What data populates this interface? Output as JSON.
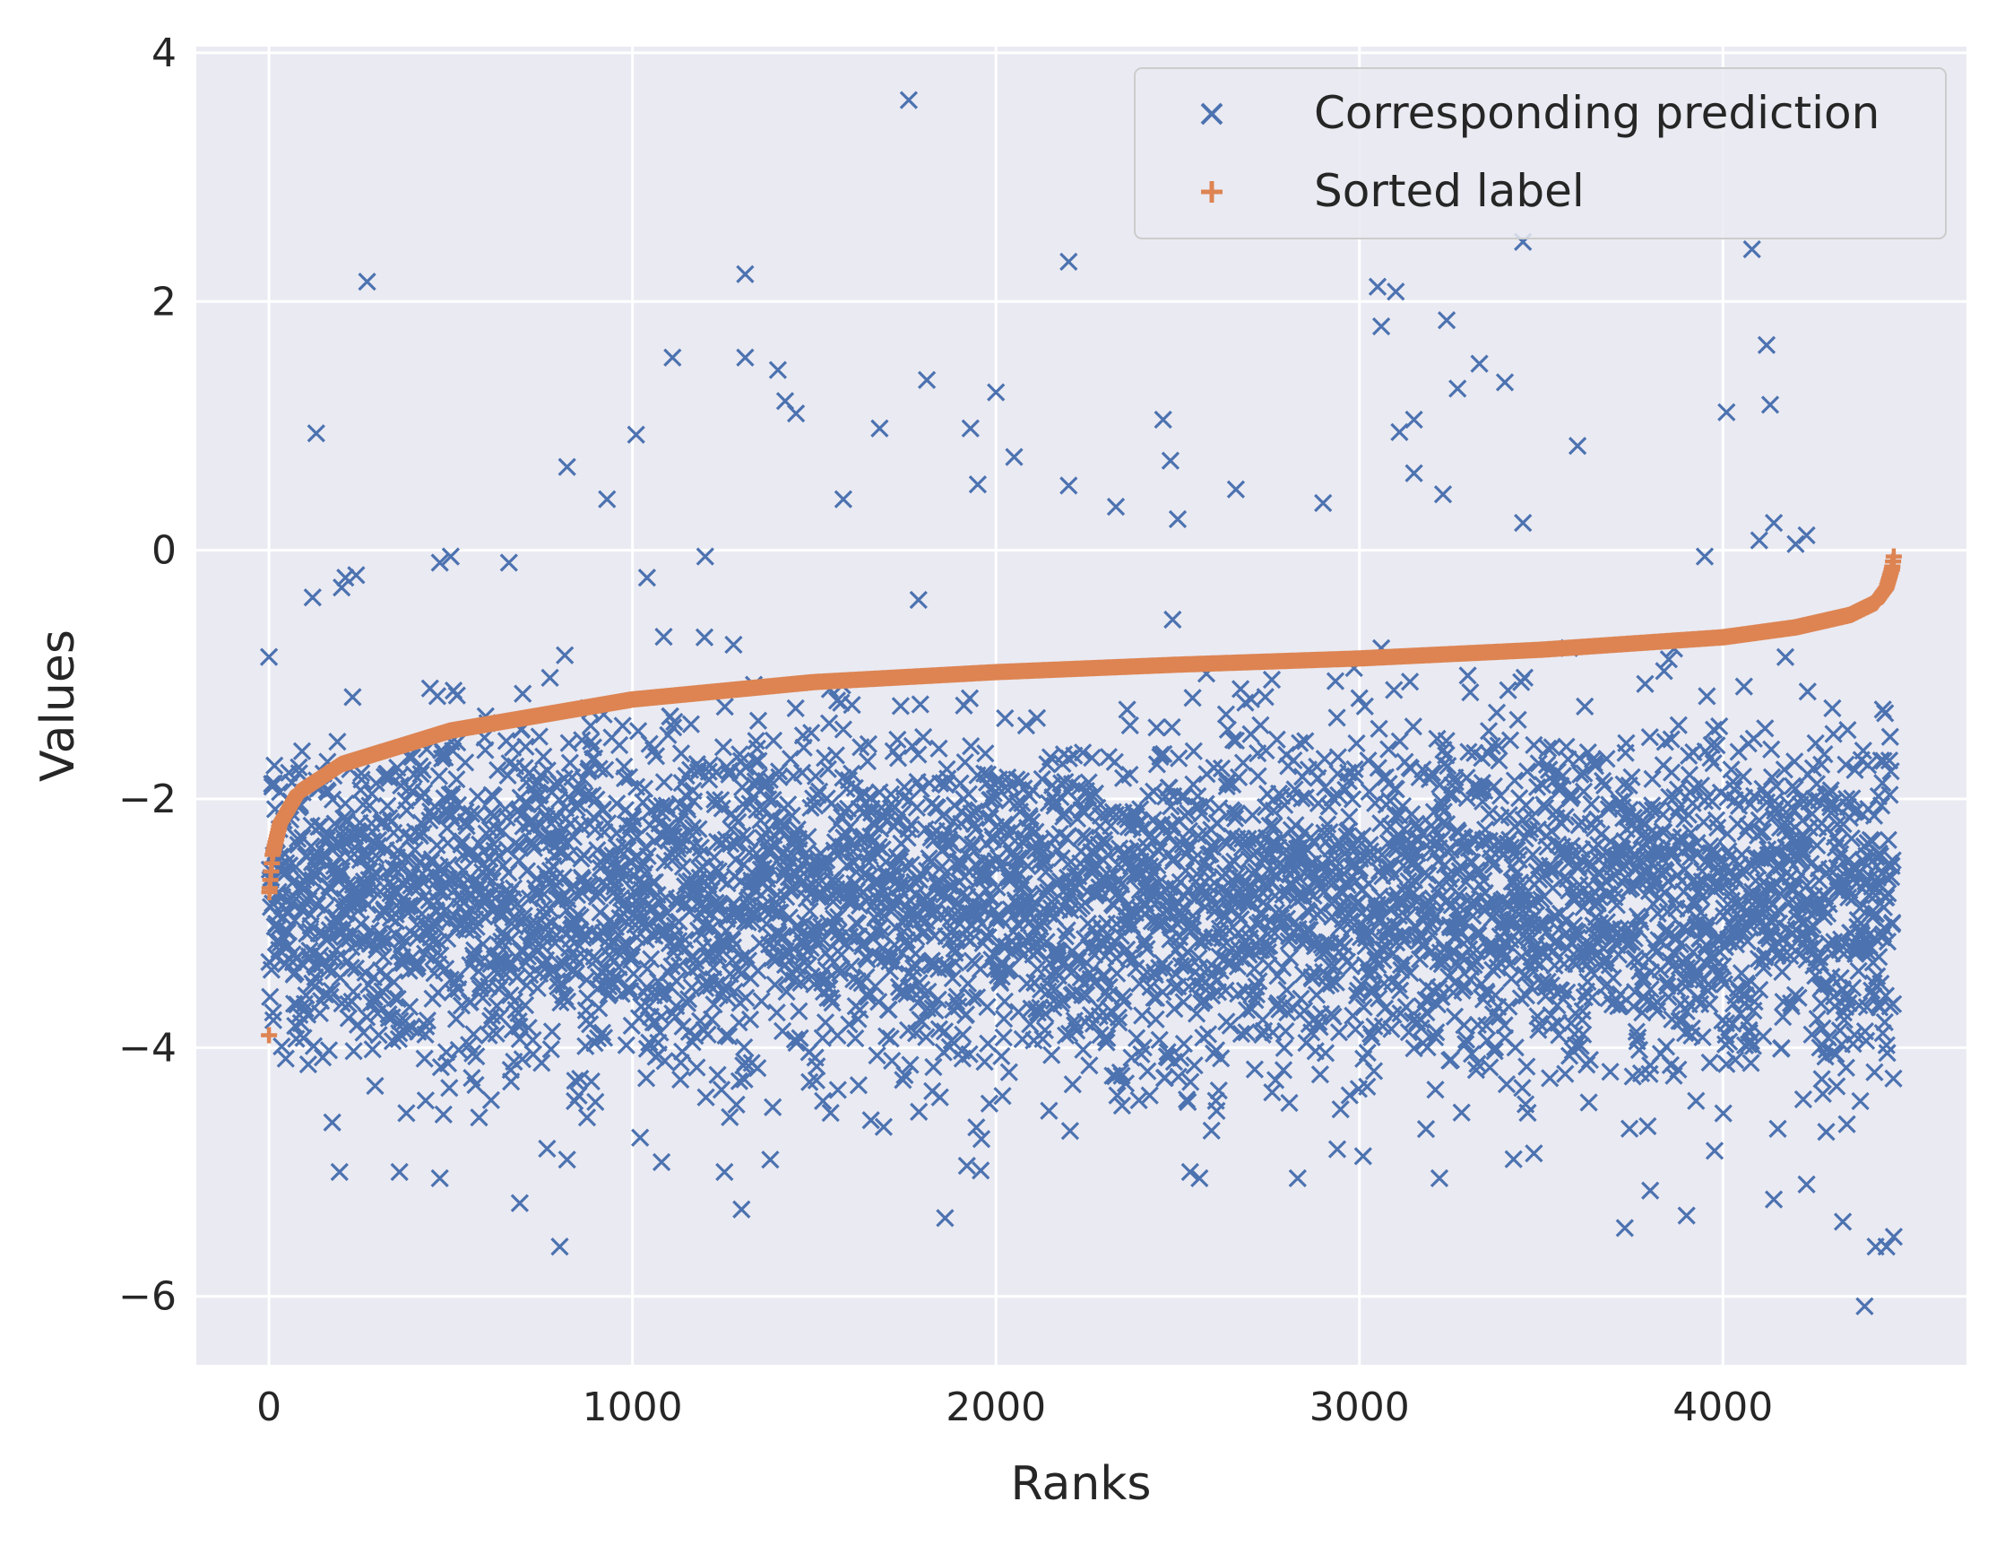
{
  "chart_data": {
    "type": "scatter",
    "xlabel": "Ranks",
    "ylabel": "Values",
    "xlim": [
      -200,
      4670
    ],
    "ylim": [
      -6.55,
      4.05
    ],
    "xticks": [
      0,
      1000,
      2000,
      3000,
      4000
    ],
    "xtick_labels": [
      "0",
      "1000",
      "2000",
      "3000",
      "4000"
    ],
    "yticks": [
      -6,
      -4,
      -2,
      0,
      2,
      4
    ],
    "ytick_labels": [
      "−6",
      "−4",
      "−2",
      "0",
      "2",
      "4"
    ],
    "grid": true,
    "legend_position": "top-right",
    "n_points": 4470,
    "series": [
      {
        "name": "Corresponding prediction",
        "marker": "x",
        "color": "#4c72b0",
        "bulk_distribution": {
          "mean": -2.8,
          "std": 0.7
        },
        "outliers": [
          [
            1760,
            3.62
          ],
          [
            270,
            2.16
          ],
          [
            1310,
            2.22
          ],
          [
            2200,
            2.32
          ],
          [
            3450,
            2.48
          ],
          [
            4080,
            2.42
          ],
          [
            3050,
            2.12
          ],
          [
            3100,
            2.08
          ],
          [
            3060,
            1.8
          ],
          [
            3240,
            1.85
          ],
          [
            4120,
            1.65
          ],
          [
            4130,
            1.17
          ],
          [
            4010,
            1.11
          ],
          [
            1110,
            1.55
          ],
          [
            1310,
            1.55
          ],
          [
            1400,
            1.45
          ],
          [
            1420,
            1.2
          ],
          [
            1450,
            1.1
          ],
          [
            1810,
            1.37
          ],
          [
            2000,
            1.27
          ],
          [
            3330,
            1.5
          ],
          [
            3400,
            1.35
          ],
          [
            3270,
            1.3
          ],
          [
            3150,
            1.05
          ],
          [
            3110,
            0.95
          ],
          [
            3600,
            0.84
          ],
          [
            130,
            0.94
          ],
          [
            1010,
            0.93
          ],
          [
            1680,
            0.98
          ],
          [
            1930,
            0.98
          ],
          [
            2460,
            1.05
          ],
          [
            820,
            0.67
          ],
          [
            930,
            0.41
          ],
          [
            2050,
            0.75
          ],
          [
            2200,
            0.52
          ],
          [
            2660,
            0.49
          ],
          [
            1950,
            0.53
          ],
          [
            2480,
            0.72
          ],
          [
            3150,
            0.62
          ],
          [
            3230,
            0.45
          ],
          [
            2330,
            0.35
          ],
          [
            1580,
            0.41
          ],
          [
            3450,
            0.22
          ],
          [
            4140,
            0.22
          ],
          [
            2900,
            0.38
          ],
          [
            2500,
            0.25
          ],
          [
            120,
            -0.38
          ],
          [
            200,
            -0.3
          ],
          [
            210,
            -0.22
          ],
          [
            240,
            -0.2
          ],
          [
            470,
            -0.1
          ],
          [
            500,
            -0.05
          ],
          [
            660,
            -0.1
          ],
          [
            1200,
            -0.05
          ],
          [
            1040,
            -0.22
          ],
          [
            3950,
            -0.05
          ],
          [
            4100,
            0.08
          ],
          [
            820,
            -4.9
          ],
          [
            1300,
            -5.3
          ],
          [
            1860,
            -5.37
          ],
          [
            2560,
            -5.05
          ],
          [
            3220,
            -5.05
          ],
          [
            3730,
            -5.45
          ],
          [
            3900,
            -5.35
          ],
          [
            4140,
            -5.22
          ],
          [
            4230,
            -5.1
          ],
          [
            4330,
            -5.4
          ],
          [
            4390,
            -6.08
          ],
          [
            4420,
            -5.6
          ],
          [
            4450,
            -5.6
          ],
          [
            4470,
            -5.52
          ],
          [
            800,
            -5.6
          ],
          [
            1920,
            -4.95
          ],
          [
            690,
            -5.25
          ],
          [
            470,
            -5.05
          ],
          [
            1080,
            -4.92
          ],
          [
            3480,
            -4.85
          ],
          [
            2830,
            -5.05
          ],
          [
            3800,
            -5.15
          ],
          [
            4400,
            -2.08
          ],
          [
            4440,
            -1.28
          ],
          [
            4460,
            -1.5
          ],
          [
            4230,
            0.12
          ],
          [
            4200,
            0.05
          ]
        ]
      },
      {
        "name": "Sorted label",
        "marker": "+",
        "color": "#dd8452",
        "curve_keypoints": [
          [
            0,
            -3.9
          ],
          [
            1,
            -2.75
          ],
          [
            10,
            -2.45
          ],
          [
            30,
            -2.2
          ],
          [
            80,
            -1.95
          ],
          [
            200,
            -1.72
          ],
          [
            500,
            -1.45
          ],
          [
            1000,
            -1.2
          ],
          [
            1500,
            -1.06
          ],
          [
            2000,
            -0.98
          ],
          [
            2500,
            -0.92
          ],
          [
            3000,
            -0.87
          ],
          [
            3500,
            -0.8
          ],
          [
            4000,
            -0.7
          ],
          [
            4200,
            -0.62
          ],
          [
            4350,
            -0.52
          ],
          [
            4420,
            -0.42
          ],
          [
            4450,
            -0.3
          ],
          [
            4465,
            -0.15
          ],
          [
            4470,
            -0.05
          ]
        ]
      }
    ]
  }
}
